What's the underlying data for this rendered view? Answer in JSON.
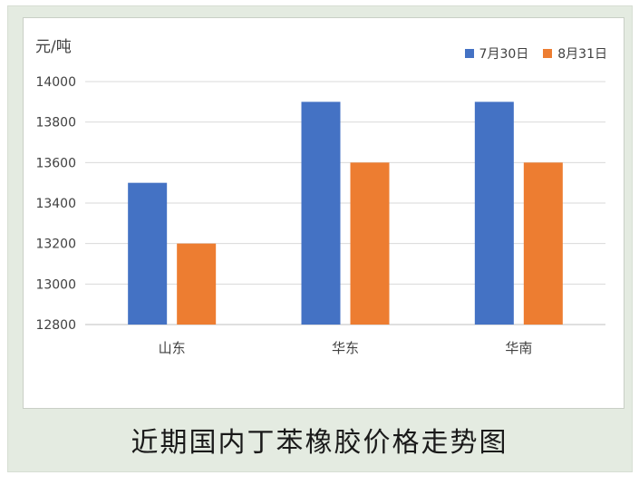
{
  "caption": "近期国内丁苯橡胶价格走势图",
  "chart_data": {
    "type": "bar",
    "title": "",
    "ylabel": "元/吨",
    "categories": [
      "山东",
      "华东",
      "华南"
    ],
    "series": [
      {
        "name": "7月30日",
        "color": "#4472C4",
        "values": [
          13500,
          13900,
          13900
        ]
      },
      {
        "name": "8月31日",
        "color": "#ED7D31",
        "values": [
          13200,
          13600,
          13600
        ]
      }
    ],
    "ylim": [
      12800,
      14000
    ],
    "yticks": [
      "14000",
      "13800",
      "13600",
      "13400",
      "13200",
      "13000",
      "12800"
    ],
    "grid": true,
    "legend_position": "top-right"
  }
}
